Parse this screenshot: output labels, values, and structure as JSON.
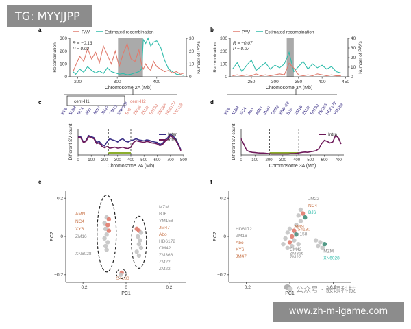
{
  "watermark_tag": "TG: MYYJJPP",
  "watermark_url": "www.zh-m-igame.com",
  "watermark_wechat": "公众号 · 毅硕科技",
  "colors": {
    "pav": "#e07b6d",
    "recomb": "#2fbcab",
    "highlight": "#9b9b9b",
    "inter": "#3a2f86",
    "intra": "#6e1a5a",
    "orange_label": "#c8754a",
    "gray_label": "#8a8a8a",
    "scatter_gray": "#c4c4c4"
  },
  "chart_data": [
    {
      "panel": "a",
      "type": "line",
      "legend": [
        "PAV",
        "Estimated recombination"
      ],
      "stats": [
        "R = −0.13",
        "P = 0.02"
      ],
      "xlabel": "Chromosome 2A (Mb)",
      "ylabel_left": "Recombination",
      "ylabel_right": "Number of PAVs",
      "xlim": [
        180,
        475
      ],
      "xticks": [
        200,
        300,
        400
      ],
      "ylim_left": [
        0,
        300
      ],
      "yticks_left": [
        0,
        100,
        200,
        300
      ],
      "ylim_right": [
        0,
        30
      ],
      "yticks_right": [
        0,
        10,
        20,
        30
      ],
      "highlight": [
        302,
        365
      ],
      "series": [
        {
          "name": "Estimated recombination",
          "axis": "left",
          "x": [
            188,
            195,
            205,
            215,
            225,
            235,
            245,
            255,
            265,
            275,
            285,
            295,
            305,
            315,
            325,
            335,
            345,
            355,
            362,
            366,
            372,
            378,
            385,
            392,
            400,
            410,
            420,
            430,
            440,
            450,
            460,
            470
          ],
          "y": [
            40,
            20,
            60,
            35,
            80,
            50,
            30,
            45,
            25,
            70,
            40,
            30,
            20,
            25,
            15,
            20,
            30,
            40,
            60,
            290,
            260,
            300,
            240,
            270,
            280,
            230,
            130,
            60,
            40,
            20,
            15,
            10
          ]
        },
        {
          "name": "PAV",
          "axis": "right",
          "x": [
            188,
            195,
            205,
            215,
            225,
            235,
            245,
            255,
            265,
            275,
            285,
            295,
            305,
            315,
            325,
            335,
            345,
            355,
            362,
            366,
            372,
            378,
            385,
            392,
            400,
            410,
            420,
            430,
            440,
            450,
            460,
            470
          ],
          "y": [
            4,
            9,
            16,
            12,
            22,
            14,
            19,
            11,
            24,
            17,
            10,
            20,
            8,
            18,
            26,
            14,
            12,
            21,
            9,
            6,
            10,
            7,
            5,
            12,
            8,
            6,
            4,
            5,
            3,
            4,
            2,
            3
          ]
        }
      ]
    },
    {
      "panel": "b",
      "type": "line",
      "legend": [
        "PAV",
        "Estimated recombination"
      ],
      "stats": [
        "R = −0.07",
        "P = 0.27"
      ],
      "xlabel": "Chromosome 3A (Mb)",
      "ylabel_left": "Recombination",
      "ylabel_right": "Number of PAVs",
      "xlim": [
        205,
        455
      ],
      "xticks": [
        250,
        300,
        350,
        400,
        450
      ],
      "ylim_left": [
        0,
        300
      ],
      "yticks_left": [
        0,
        100,
        200,
        300
      ],
      "ylim_right": [
        0,
        40
      ],
      "yticks_right": [
        0,
        10,
        20,
        30,
        40
      ],
      "highlight": [
        325,
        340
      ],
      "series": [
        {
          "name": "Estimated recombination",
          "axis": "left",
          "x": [
            210,
            220,
            230,
            240,
            250,
            260,
            270,
            280,
            290,
            300,
            310,
            320,
            330,
            340,
            350,
            360,
            370,
            380,
            390,
            400,
            410,
            420,
            430,
            440
          ],
          "y": [
            60,
            110,
            40,
            90,
            130,
            50,
            80,
            110,
            60,
            90,
            70,
            100,
            190,
            40,
            80,
            120,
            60,
            100,
            70,
            90,
            60,
            80,
            40,
            30
          ]
        },
        {
          "name": "PAV",
          "axis": "right",
          "x": [
            210,
            220,
            230,
            240,
            250,
            260,
            270,
            280,
            290,
            300,
            310,
            320,
            330,
            340,
            350,
            360,
            370,
            380,
            390,
            400,
            410,
            420,
            430,
            440
          ],
          "y": [
            1,
            2,
            1,
            2,
            1,
            3,
            1,
            2,
            1,
            2,
            3,
            2,
            14,
            9,
            2,
            1,
            2,
            1,
            3,
            2,
            1,
            2,
            1,
            1
          ]
        }
      ]
    },
    {
      "panel": "c",
      "type": "line",
      "legend": [
        "Inter",
        "Intra"
      ],
      "groups": [
        "cent-H1",
        "cent-H2"
      ],
      "accessions": [
        "XY6",
        "MZM",
        "NC4",
        "Abo",
        "AMN",
        "JM47",
        "CM42",
        "XN6028",
        "BJ6",
        "ZM16",
        "ZM22",
        "S4180",
        "ZM366",
        "HD6172",
        "YM158"
      ],
      "xlabel": "Chromosome 2A (Mb)",
      "ylabel": "Different SV count",
      "xlim": [
        0,
        800
      ],
      "xticks": [
        0,
        100,
        200,
        300,
        400,
        500,
        600,
        700,
        800
      ],
      "centromere_lines": [
        230,
        400
      ],
      "series": [
        {
          "name": "Inter",
          "x": [
            0,
            20,
            40,
            60,
            80,
            100,
            120,
            140,
            160,
            180,
            200,
            220,
            240,
            260,
            280,
            300,
            320,
            340,
            360,
            380,
            400,
            420,
            440,
            460,
            480,
            500,
            520,
            540,
            560,
            580,
            600,
            620,
            640,
            660,
            680,
            700,
            720,
            740,
            760,
            780
          ],
          "y": [
            0.72,
            0.7,
            0.5,
            0.55,
            0.74,
            0.7,
            0.66,
            0.48,
            0.52,
            0.4,
            0.35,
            0.5,
            0.62,
            0.58,
            0.55,
            0.5,
            0.58,
            0.62,
            0.52,
            0.5,
            0.55,
            0.58,
            0.62,
            0.58,
            0.56,
            0.54,
            0.58,
            0.56,
            0.52,
            0.5,
            0.48,
            0.4,
            0.44,
            0.58,
            0.66,
            0.8,
            0.72,
            0.62,
            0.42,
            0.2
          ]
        },
        {
          "name": "Intra",
          "x": [
            0,
            20,
            40,
            60,
            80,
            100,
            120,
            140,
            160,
            180,
            200,
            220,
            240,
            260,
            280,
            300,
            320,
            340,
            360,
            380,
            400,
            420,
            440,
            460,
            480,
            500,
            520,
            540,
            560,
            580,
            600,
            620,
            640,
            660,
            680,
            700,
            720,
            740,
            760,
            780
          ],
          "y": [
            0.68,
            0.66,
            0.48,
            0.52,
            0.7,
            0.66,
            0.62,
            0.44,
            0.46,
            0.34,
            0.28,
            0.32,
            0.26,
            0.28,
            0.3,
            0.26,
            0.28,
            0.3,
            0.26,
            0.25,
            0.3,
            0.48,
            0.55,
            0.52,
            0.5,
            0.48,
            0.52,
            0.5,
            0.46,
            0.45,
            0.42,
            0.36,
            0.4,
            0.52,
            0.6,
            0.74,
            0.66,
            0.56,
            0.38,
            0.16
          ]
        }
      ]
    },
    {
      "panel": "d",
      "type": "line",
      "legend": [
        "Intra"
      ],
      "accessions": [
        "XY6",
        "MZM",
        "NC4",
        "Abo",
        "AMN",
        "JM47",
        "CM42",
        "XN6028",
        "BJ6",
        "ZM16",
        "ZM22",
        "S4180",
        "ZM366",
        "HD6172",
        "YM158"
      ],
      "xlabel": "Chromosome 3A (Mb)",
      "ylabel": "Different SV count",
      "xlim": [
        0,
        740
      ],
      "xticks": [
        0,
        100,
        200,
        300,
        400,
        500,
        600,
        700
      ],
      "centromere_lines": [
        205,
        415
      ],
      "series": [
        {
          "name": "Intra",
          "x": [
            0,
            20,
            40,
            60,
            80,
            100,
            120,
            140,
            160,
            180,
            200,
            220,
            240,
            260,
            280,
            300,
            320,
            340,
            360,
            380,
            400,
            420,
            440,
            460,
            480,
            500,
            520,
            540,
            560,
            580,
            600,
            620,
            640,
            660,
            680,
            700,
            720
          ],
          "y": [
            0.62,
            0.4,
            0.18,
            0.12,
            0.1,
            0.09,
            0.08,
            0.07,
            0.07,
            0.06,
            0.05,
            0.04,
            0.04,
            0.04,
            0.04,
            0.04,
            0.04,
            0.04,
            0.05,
            0.05,
            0.06,
            0.08,
            0.1,
            0.11,
            0.1,
            0.12,
            0.14,
            0.16,
            0.24,
            0.44,
            0.56,
            0.52,
            0.46,
            0.5,
            0.74,
            0.66,
            0.42
          ]
        }
      ]
    },
    {
      "panel": "e",
      "type": "scatter",
      "xlabel": "PC1",
      "ylabel": "PC2",
      "xlim": [
        -0.28,
        0.28
      ],
      "xticks": [
        -0.2,
        0,
        0.2
      ],
      "ylim": [
        -0.24,
        0.24
      ],
      "yticks": [
        -0.2,
        0,
        0.2
      ],
      "labels_left": [
        {
          "text": "AMN",
          "tone": "orange"
        },
        {
          "text": "NC4",
          "tone": "orange"
        },
        {
          "text": "XY6",
          "tone": "orange"
        },
        {
          "text": "ZM16",
          "tone": "gray"
        },
        {
          "text": "XN6028",
          "tone": "gray"
        }
      ],
      "labels_right": [
        {
          "text": "MZM",
          "tone": "gray"
        },
        {
          "text": "BJ6",
          "tone": "gray"
        },
        {
          "text": "YM158",
          "tone": "gray"
        },
        {
          "text": "JM47",
          "tone": "orange"
        },
        {
          "text": "Abo",
          "tone": "orange"
        },
        {
          "text": "HD6172",
          "tone": "gray"
        },
        {
          "text": "CM42",
          "tone": "gray"
        },
        {
          "text": "ZM366",
          "tone": "gray"
        },
        {
          "text": "ZM22",
          "tone": "gray"
        },
        {
          "text": "ZM22",
          "tone": "gray"
        }
      ],
      "label_bottom": {
        "text": "S4180",
        "tone": "orange"
      },
      "points": [
        {
          "x": -0.09,
          "y": 0.1,
          "c": "gray"
        },
        {
          "x": -0.08,
          "y": 0.09,
          "c": "orange"
        },
        {
          "x": -0.1,
          "y": 0.07,
          "c": "gray"
        },
        {
          "x": -0.085,
          "y": 0.06,
          "c": "orange"
        },
        {
          "x": -0.095,
          "y": 0.04,
          "c": "gray"
        },
        {
          "x": -0.08,
          "y": 0.03,
          "c": "orange"
        },
        {
          "x": -0.09,
          "y": 0.01,
          "c": "gray"
        },
        {
          "x": -0.1,
          "y": -0.01,
          "c": "gray"
        },
        {
          "x": -0.085,
          "y": -0.03,
          "c": "gray"
        },
        {
          "x": -0.095,
          "y": -0.05,
          "c": "gray"
        },
        {
          "x": -0.09,
          "y": -0.07,
          "c": "gray"
        },
        {
          "x": 0.05,
          "y": 0.04,
          "c": "orange"
        },
        {
          "x": 0.06,
          "y": 0.03,
          "c": "orange"
        },
        {
          "x": 0.07,
          "y": 0.02,
          "c": "gray"
        },
        {
          "x": 0.055,
          "y": 0.0,
          "c": "gray"
        },
        {
          "x": 0.065,
          "y": -0.02,
          "c": "gray"
        },
        {
          "x": 0.06,
          "y": -0.04,
          "c": "gray"
        },
        {
          "x": 0.07,
          "y": -0.06,
          "c": "gray"
        },
        {
          "x": 0.05,
          "y": -0.08,
          "c": "gray"
        },
        {
          "x": 0.06,
          "y": -0.1,
          "c": "gray"
        },
        {
          "x": -0.02,
          "y": -0.19,
          "c": "orange"
        },
        {
          "x": -0.025,
          "y": -0.2,
          "c": "gray"
        }
      ]
    },
    {
      "panel": "f",
      "type": "scatter",
      "xlabel": "PC1",
      "ylabel": "PC2",
      "xlim": [
        -0.28,
        0.28
      ],
      "xticks": [
        -0.2,
        0,
        0.2
      ],
      "ylim": [
        -0.24,
        0.24
      ],
      "yticks": [
        -0.2,
        0,
        0.2
      ],
      "labels_left": [
        {
          "text": "HD6172",
          "tone": "gray"
        },
        {
          "text": "ZM16",
          "tone": "gray"
        },
        {
          "text": "Abo",
          "tone": "orange"
        },
        {
          "text": "XY6",
          "tone": "orange"
        },
        {
          "text": "JM47",
          "tone": "orange"
        }
      ],
      "labels_top": [
        {
          "text": "JM22",
          "tone": "gray"
        },
        {
          "text": "NC4",
          "tone": "orange"
        },
        {
          "text": "BJ6",
          "tone": "teal"
        }
      ],
      "labels_center": [
        {
          "text": "AMN",
          "tone": "orange"
        },
        {
          "text": "S4180",
          "tone": "orange"
        },
        {
          "text": "YM158",
          "tone": "gray"
        },
        {
          "text": "CM42",
          "tone": "gray"
        },
        {
          "text": "ZM366",
          "tone": "gray"
        },
        {
          "text": "ZM22",
          "tone": "gray"
        }
      ],
      "labels_right": [
        {
          "text": "MZM",
          "tone": "gray"
        },
        {
          "text": "XN6028",
          "tone": "teal"
        }
      ],
      "points": [
        {
          "x": 0.05,
          "y": 0.14,
          "c": "gray"
        },
        {
          "x": 0.06,
          "y": 0.12,
          "c": "orange"
        },
        {
          "x": 0.04,
          "y": 0.11,
          "c": "gray"
        },
        {
          "x": 0.07,
          "y": 0.1,
          "c": "teal"
        },
        {
          "x": 0.05,
          "y": 0.08,
          "c": "gray"
        },
        {
          "x": 0.03,
          "y": 0.06,
          "c": "gray"
        },
        {
          "x": 0.0,
          "y": 0.04,
          "c": "gray"
        },
        {
          "x": 0.02,
          "y": 0.03,
          "c": "orange"
        },
        {
          "x": -0.01,
          "y": 0.02,
          "c": "gray"
        },
        {
          "x": 0.03,
          "y": 0.01,
          "c": "teal"
        },
        {
          "x": 0.01,
          "y": 0.0,
          "c": "orange"
        },
        {
          "x": -0.02,
          "y": -0.01,
          "c": "gray"
        },
        {
          "x": 0.02,
          "y": -0.02,
          "c": "gray"
        },
        {
          "x": 0.0,
          "y": -0.03,
          "c": "orange"
        },
        {
          "x": -0.03,
          "y": -0.04,
          "c": "gray"
        },
        {
          "x": 0.01,
          "y": -0.05,
          "c": "gray"
        },
        {
          "x": 0.04,
          "y": -0.04,
          "c": "gray"
        },
        {
          "x": -0.01,
          "y": -0.06,
          "c": "gray"
        },
        {
          "x": 0.12,
          "y": -0.02,
          "c": "gray"
        },
        {
          "x": 0.14,
          "y": -0.03,
          "c": "gray"
        },
        {
          "x": 0.16,
          "y": -0.04,
          "c": "teal"
        },
        {
          "x": 0.13,
          "y": -0.05,
          "c": "gray"
        },
        {
          "x": 0.15,
          "y": -0.06,
          "c": "gray"
        }
      ]
    }
  ]
}
